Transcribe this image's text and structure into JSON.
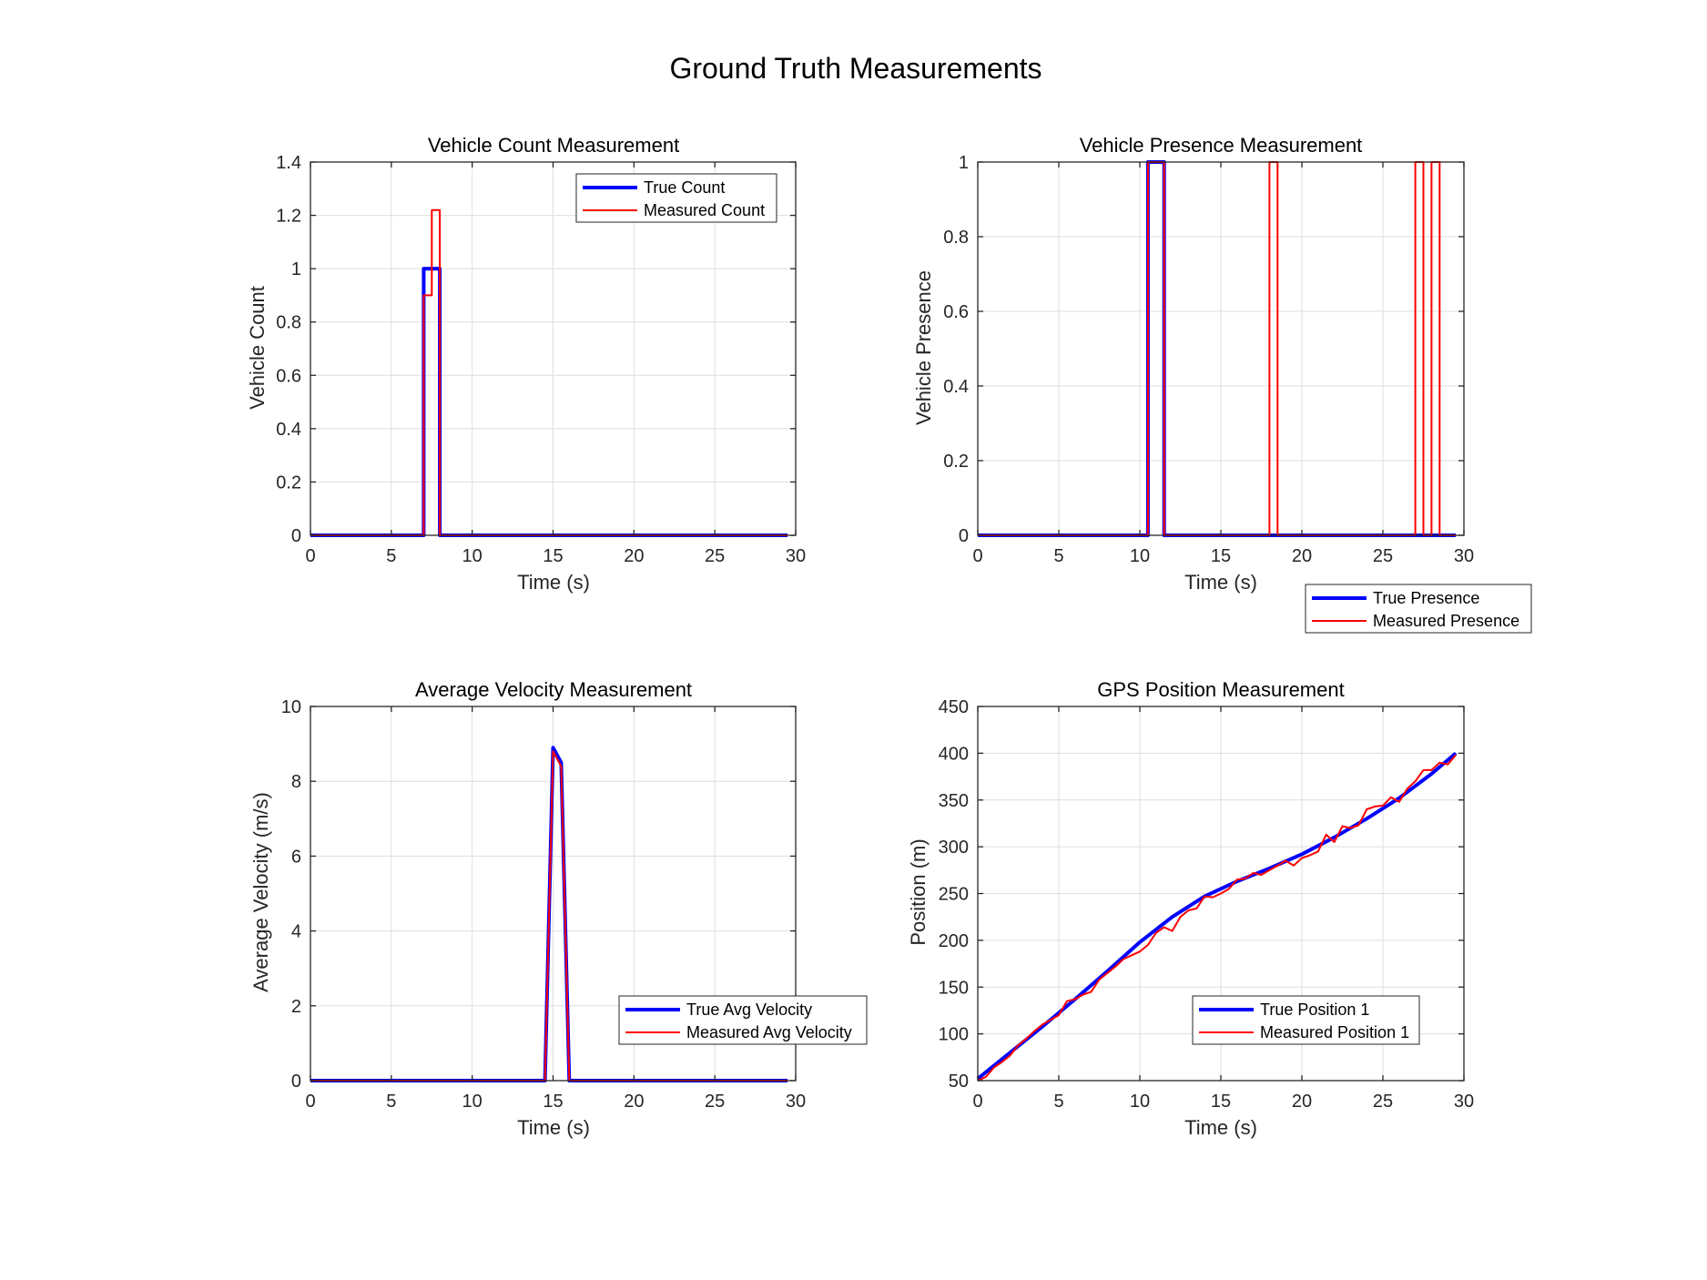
{
  "figure": {
    "title": "Ground Truth Measurements"
  },
  "chart_data": [
    {
      "type": "line",
      "title": "Vehicle Count Measurement",
      "xlabel": "Time (s)",
      "ylabel": "Vehicle Count",
      "xlim": [
        0,
        30
      ],
      "ylim": [
        0,
        1.4
      ],
      "xticks": [
        "0",
        "5",
        "10",
        "15",
        "20",
        "25",
        "30"
      ],
      "yticks": [
        "0",
        "0.2",
        "0.4",
        "0.6",
        "0.8",
        "1",
        "1.2",
        "1.4"
      ],
      "grid": true,
      "legend_position": "top-right",
      "series": [
        {
          "name": "True Count",
          "color": "#0000ff",
          "width": "thick",
          "x": [
            0,
            7,
            7,
            8,
            8,
            29.5
          ],
          "y": [
            0,
            0,
            1,
            1,
            0,
            0
          ]
        },
        {
          "name": "Measured Count",
          "color": "#ff0000",
          "width": "thin",
          "x": [
            0,
            7,
            7,
            7.5,
            7.5,
            8,
            8,
            29.5
          ],
          "y": [
            0,
            0,
            0.9,
            0.9,
            1.22,
            1.22,
            0,
            0
          ]
        }
      ]
    },
    {
      "type": "line",
      "title": "Vehicle Presence Measurement",
      "xlabel": "Time (s)",
      "ylabel": "Vehicle Presence",
      "xlim": [
        0,
        30
      ],
      "ylim": [
        0,
        1
      ],
      "xticks": [
        "0",
        "5",
        "10",
        "15",
        "20",
        "25",
        "30"
      ],
      "yticks": [
        "0",
        "0.2",
        "0.4",
        "0.6",
        "0.8",
        "1"
      ],
      "grid": true,
      "legend_position": "below-right",
      "series": [
        {
          "name": "True Presence",
          "color": "#0000ff",
          "width": "thick",
          "x": [
            0,
            10.5,
            10.5,
            11.5,
            11.5,
            29.5
          ],
          "y": [
            0,
            0,
            1,
            1,
            0,
            0
          ]
        },
        {
          "name": "Measured Presence",
          "color": "#ff0000",
          "width": "thin",
          "x": [
            0,
            10.5,
            10.5,
            11.5,
            11.5,
            18,
            18,
            18.5,
            18.5,
            27,
            27,
            27.5,
            27.5,
            28,
            28,
            28.5,
            28.5,
            29.5
          ],
          "y": [
            0,
            0,
            1,
            1,
            0,
            0,
            1,
            1,
            0,
            0,
            1,
            1,
            0,
            0,
            1,
            1,
            0,
            0
          ]
        }
      ]
    },
    {
      "type": "line",
      "title": "Average Velocity Measurement",
      "xlabel": "Time (s)",
      "ylabel": "Average Velocity (m/s)",
      "xlim": [
        0,
        30
      ],
      "ylim": [
        0,
        10
      ],
      "xticks": [
        "0",
        "5",
        "10",
        "15",
        "20",
        "25",
        "30"
      ],
      "yticks": [
        "0",
        "2",
        "4",
        "6",
        "8",
        "10"
      ],
      "grid": true,
      "legend_position": "bottom-right",
      "series": [
        {
          "name": "True Avg Velocity",
          "color": "#0000ff",
          "width": "thick",
          "x": [
            0,
            14.5,
            15,
            15.5,
            16,
            29.5
          ],
          "y": [
            0,
            0,
            8.9,
            8.5,
            0,
            0
          ]
        },
        {
          "name": "Measured Avg Velocity",
          "color": "#ff0000",
          "width": "thin",
          "x": [
            0,
            14.5,
            15,
            15.5,
            16,
            29.5
          ],
          "y": [
            0,
            0,
            8.8,
            8.4,
            0,
            0
          ]
        }
      ]
    },
    {
      "type": "line",
      "title": "GPS Position Measurement",
      "xlabel": "Time (s)",
      "ylabel": "Position (m)",
      "xlim": [
        0,
        30
      ],
      "ylim": [
        50,
        450
      ],
      "xticks": [
        "0",
        "5",
        "10",
        "15",
        "20",
        "25",
        "30"
      ],
      "yticks": [
        "50",
        "100",
        "150",
        "200",
        "250",
        "300",
        "350",
        "400",
        "450"
      ],
      "grid": true,
      "legend_position": "bottom-center",
      "series": [
        {
          "name": "True Position 1",
          "color": "#0000ff",
          "width": "thick",
          "x": [
            0,
            2,
            4,
            6,
            8,
            10,
            12,
            14,
            16,
            18,
            20,
            22,
            24,
            26,
            28,
            29.5
          ],
          "y": [
            52,
            80,
            108,
            137,
            167,
            198,
            225,
            247,
            263,
            277,
            292,
            310,
            330,
            352,
            378,
            400
          ]
        },
        {
          "name": "Measured Position 1",
          "color": "#ff0000",
          "width": "thin",
          "x": [
            0,
            0.5,
            1,
            1.5,
            2,
            2.5,
            3,
            3.5,
            4,
            4.5,
            5,
            5.5,
            6,
            6.5,
            7,
            7.5,
            8,
            8.5,
            9,
            9.5,
            10,
            10.5,
            11,
            11.5,
            12,
            12.5,
            13,
            13.5,
            14,
            14.5,
            15,
            15.5,
            16,
            16.5,
            17,
            17.5,
            18,
            18.5,
            19,
            19.5,
            20,
            20.5,
            21,
            21.5,
            22,
            22.5,
            23,
            23.5,
            24,
            24.5,
            25,
            25.5,
            26,
            26.5,
            27,
            27.5,
            28,
            28.5,
            29,
            29.5
          ],
          "y": [
            50,
            54,
            64,
            70,
            77,
            88,
            95,
            103,
            110,
            115,
            120,
            135,
            137,
            142,
            145,
            158,
            165,
            172,
            180,
            184,
            188,
            195,
            208,
            214,
            210,
            225,
            232,
            234,
            247,
            246,
            250,
            255,
            265,
            266,
            272,
            270,
            275,
            280,
            285,
            280,
            288,
            291,
            295,
            313,
            305,
            322,
            320,
            323,
            340,
            343,
            344,
            353,
            348,
            362,
            370,
            382,
            382,
            390,
            388,
            398
          ]
        }
      ]
    }
  ]
}
